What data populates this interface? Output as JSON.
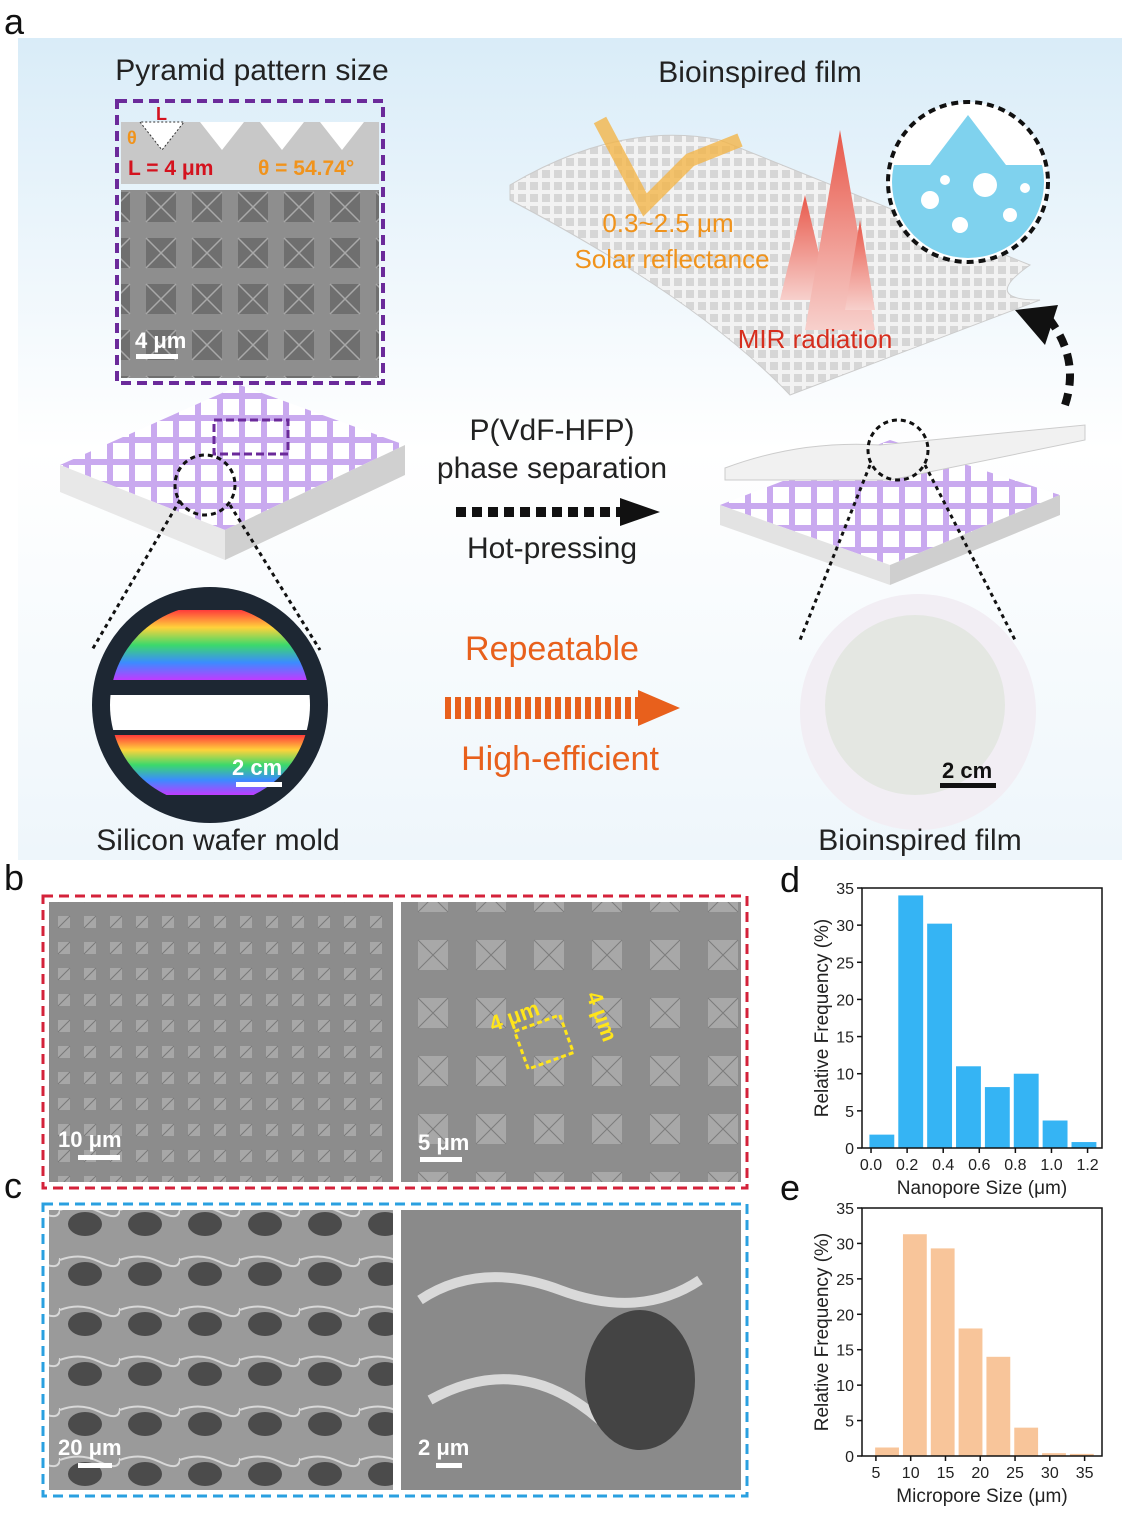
{
  "figure": {
    "panel_labels": [
      "a",
      "b",
      "c",
      "d",
      "e"
    ],
    "a": {
      "inset_title": "Pyramid pattern size",
      "L": "L",
      "theta": "θ",
      "L_value": "L = 4 μm",
      "theta_value": "θ = 54.74°",
      "scale_inset": "4 μm",
      "film_title": "Bioinspired film",
      "wavelength": "0.3~2.5 μm",
      "solar": "Solar reflectance",
      "mir": "MIR radiation",
      "material": "P(VdF-HFP)",
      "process": "phase separation",
      "hot": "Hot-pressing",
      "repeatable": "Repeatable",
      "efficient": "High-efficient",
      "scale_wafer": "2 cm",
      "scale_film": "2 cm",
      "wafer_caption": "Silicon wafer mold",
      "film_caption": "Bioinspired film"
    },
    "b": {
      "scale_left": "10 μm",
      "scale_right": "5 μm",
      "dim1": "4 μm",
      "dim2": "4 μm"
    },
    "c": {
      "scale_left": "20 μm",
      "scale_right": "2 μm"
    }
  },
  "chart_data": [
    {
      "type": "histogram",
      "color": "#35b4f4",
      "xlabel": "Nanopore Size (μm)",
      "ylabel": "Relative Frequency (%)",
      "bins": [
        -0.02,
        0.14,
        0.3,
        0.46,
        0.62,
        0.78,
        0.94,
        1.1,
        1.26
      ],
      "values": [
        1.8,
        34,
        30.2,
        11,
        8.2,
        10,
        3.7,
        0.8
      ],
      "xlim": [
        -0.05,
        1.28
      ],
      "xticks": [
        {
          "value": 0,
          "label": "0.0"
        },
        0.2,
        0.4,
        0.6,
        0.8,
        {
          "value": 1,
          "label": "1.0"
        },
        1.2
      ],
      "ylim": [
        0,
        35
      ],
      "yticks": [
        0,
        5,
        10,
        15,
        20,
        25,
        30,
        35
      ]
    },
    {
      "type": "histogram",
      "color": "#f8c59a",
      "xlabel": "Micropore Size (μm)",
      "ylabel": "Relative Frequency (%)",
      "bins": [
        4.6,
        8.6,
        12.6,
        16.6,
        20.6,
        24.6,
        28.6,
        32.6,
        36.6
      ],
      "values": [
        1.2,
        31.3,
        29.3,
        18,
        14,
        4,
        0.4,
        0.3
      ],
      "xlim": [
        3,
        37.5
      ],
      "xticks": [
        5,
        10,
        15,
        20,
        25,
        30,
        35
      ],
      "ylim": [
        0,
        35
      ],
      "yticks": [
        0,
        5,
        10,
        15,
        20,
        25,
        30,
        35
      ]
    }
  ]
}
